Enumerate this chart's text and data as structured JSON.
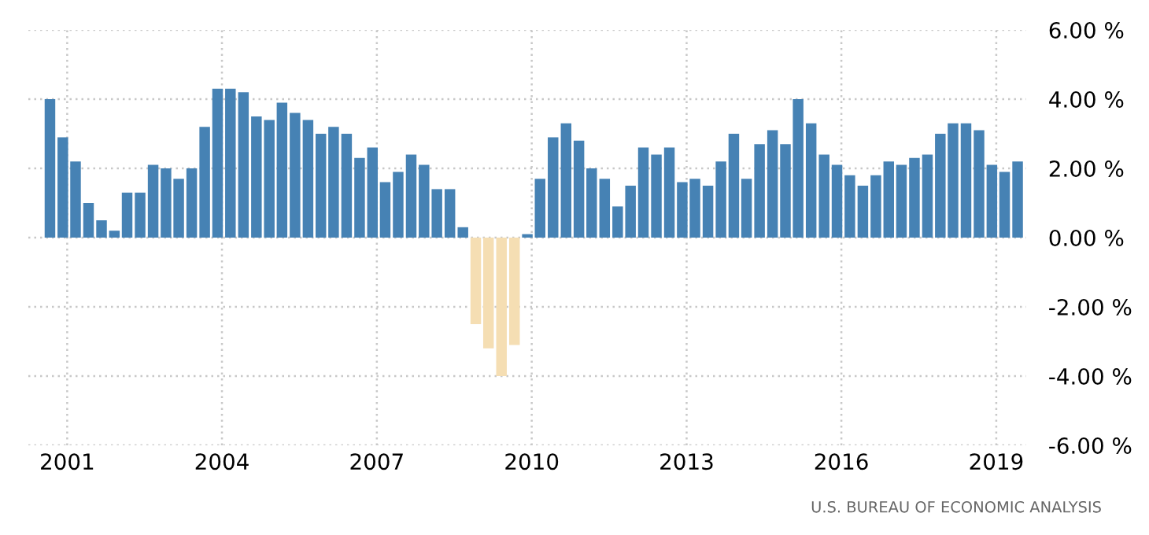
{
  "chart_data": {
    "type": "bar",
    "x": [
      "2000-09",
      "2000-12",
      "2001-03",
      "2001-06",
      "2001-09",
      "2001-12",
      "2002-03",
      "2002-06",
      "2002-09",
      "2002-12",
      "2003-03",
      "2003-06",
      "2003-09",
      "2003-12",
      "2004-03",
      "2004-06",
      "2004-09",
      "2004-12",
      "2005-03",
      "2005-06",
      "2005-09",
      "2005-12",
      "2006-03",
      "2006-06",
      "2006-09",
      "2006-12",
      "2007-03",
      "2007-06",
      "2007-09",
      "2007-12",
      "2008-03",
      "2008-06",
      "2008-09",
      "2008-12",
      "2009-03",
      "2009-06",
      "2009-09",
      "2009-12",
      "2010-03",
      "2010-06",
      "2010-09",
      "2010-12",
      "2011-03",
      "2011-06",
      "2011-09",
      "2011-12",
      "2012-03",
      "2012-06",
      "2012-09",
      "2012-12",
      "2013-03",
      "2013-06",
      "2013-09",
      "2013-12",
      "2014-03",
      "2014-06",
      "2014-09",
      "2014-12",
      "2015-03",
      "2015-06",
      "2015-09",
      "2015-12",
      "2016-03",
      "2016-06",
      "2016-09",
      "2016-12",
      "2017-03",
      "2017-06",
      "2017-09",
      "2017-12",
      "2018-03",
      "2018-06",
      "2018-09",
      "2018-12",
      "2019-03",
      "2019-06"
    ],
    "values": [
      4.0,
      2.9,
      2.2,
      1.0,
      0.5,
      0.2,
      1.3,
      1.3,
      2.1,
      2.0,
      1.7,
      2.0,
      3.2,
      4.3,
      4.3,
      4.2,
      3.5,
      3.4,
      3.9,
      3.6,
      3.4,
      3.0,
      3.2,
      3.0,
      2.3,
      2.6,
      1.6,
      1.9,
      2.4,
      2.1,
      1.4,
      1.4,
      0.3,
      -2.5,
      -3.2,
      -4.0,
      -3.1,
      0.1,
      1.7,
      2.9,
      3.3,
      2.8,
      2.0,
      1.7,
      0.9,
      1.5,
      2.6,
      2.4,
      2.6,
      1.6,
      1.7,
      1.5,
      2.2,
      3.0,
      1.7,
      2.7,
      3.1,
      2.7,
      4.0,
      3.3,
      2.4,
      2.1,
      1.8,
      1.5,
      1.8,
      2.2,
      2.1,
      2.3,
      2.4,
      3.0,
      3.3,
      3.3,
      3.1,
      2.1,
      1.9,
      2.2
    ],
    "colors": [
      "#4682b4",
      "#4682b4",
      "#4682b4",
      "#4682b4",
      "#4682b4",
      "#4682b4",
      "#4682b4",
      "#4682b4",
      "#4682b4",
      "#4682b4",
      "#4682b4",
      "#4682b4",
      "#4682b4",
      "#4682b4",
      "#4682b4",
      "#4682b4",
      "#4682b4",
      "#4682b4",
      "#4682b4",
      "#4682b4",
      "#4682b4",
      "#4682b4",
      "#4682b4",
      "#4682b4",
      "#4682b4",
      "#4682b4",
      "#4682b4",
      "#4682b4",
      "#4682b4",
      "#4682b4",
      "#4682b4",
      "#4682b4",
      "#4682b4",
      "#f5deb3",
      "#f5deb3",
      "#f5deb3",
      "#f5deb3",
      "#4682b4",
      "#4682b4",
      "#4682b4",
      "#4682b4",
      "#4682b4",
      "#4682b4",
      "#4682b4",
      "#4682b4",
      "#4682b4",
      "#4682b4",
      "#4682b4",
      "#4682b4",
      "#4682b4",
      "#4682b4",
      "#4682b4",
      "#4682b4",
      "#4682b4",
      "#4682b4",
      "#4682b4",
      "#4682b4",
      "#4682b4",
      "#4682b4",
      "#4682b4",
      "#4682b4",
      "#4682b4",
      "#4682b4",
      "#4682b4",
      "#4682b4",
      "#4682b4",
      "#4682b4",
      "#4682b4",
      "#4682b4",
      "#4682b4",
      "#4682b4",
      "#4682b4",
      "#4682b4",
      "#4682b4",
      "#4682b4",
      "#4682b4"
    ],
    "xlim": [
      "2000-04",
      "2019-08"
    ],
    "xticks": [
      {
        "value": "2001-01",
        "label": "2001"
      },
      {
        "value": "2004-01",
        "label": "2004"
      },
      {
        "value": "2007-01",
        "label": "2007"
      },
      {
        "value": "2010-01",
        "label": "2010"
      },
      {
        "value": "2013-01",
        "label": "2013"
      },
      {
        "value": "2016-01",
        "label": "2016"
      },
      {
        "value": "2019-01",
        "label": "2019"
      }
    ],
    "ylim": [
      -6,
      6
    ],
    "yticks": [
      {
        "value": -6,
        "label": "-6.00 %"
      },
      {
        "value": -4,
        "label": "-4.00 %"
      },
      {
        "value": -2,
        "label": "-2.00 %"
      },
      {
        "value": 0,
        "label": "0.00 %"
      },
      {
        "value": 2,
        "label": "2.00 %"
      },
      {
        "value": 4,
        "label": "4.00 %"
      },
      {
        "value": 6,
        "label": "6.00 %"
      }
    ],
    "grid": true,
    "annotations": [
      "U.S. BUREAU OF ECONOMIC ANALYSIS"
    ]
  }
}
